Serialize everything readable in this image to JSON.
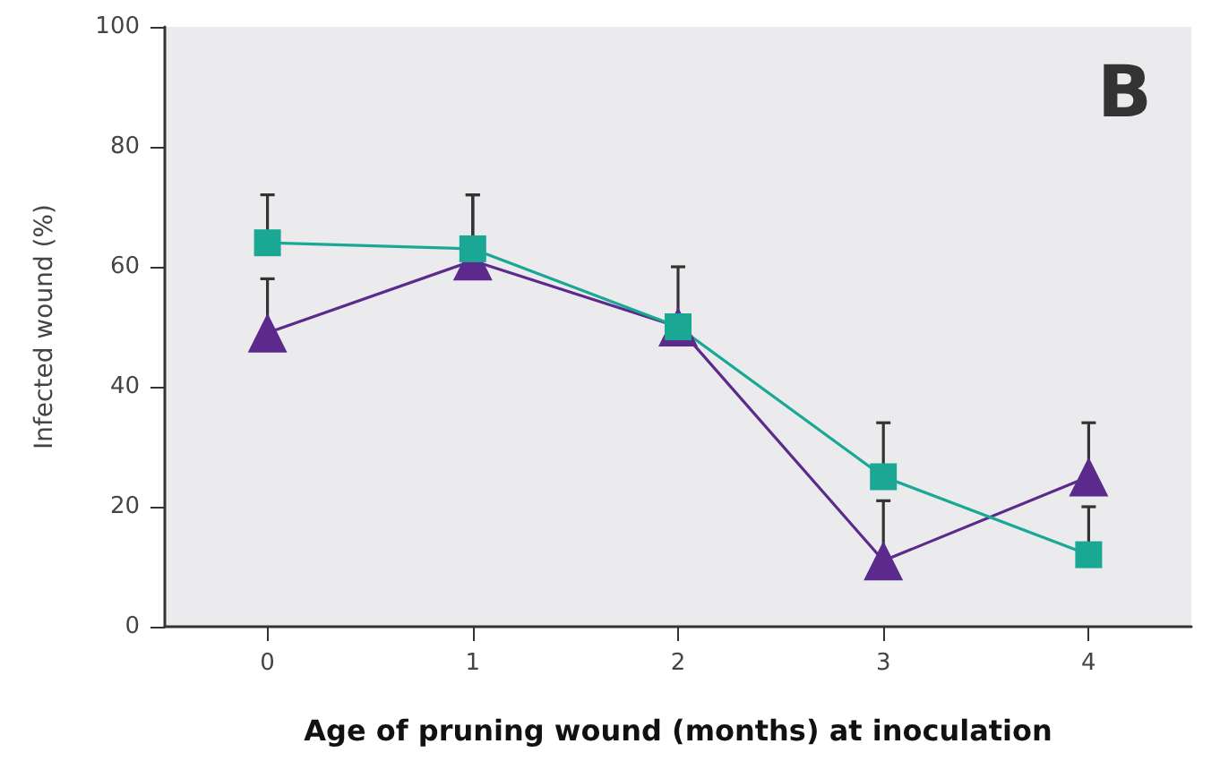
{
  "chart_data": {
    "type": "line",
    "xlabel": "Age of pruning wound (months) at inoculation",
    "ylabel": "Infected wound (%)",
    "categories": [
      "0",
      "1",
      "2",
      "3",
      "4"
    ],
    "series": [
      {
        "color": "#5b2a8c",
        "marker": "triangle",
        "values": [
          49,
          61,
          50,
          11,
          25
        ],
        "errors": [
          [
            49,
            58
          ],
          [
            61,
            72
          ],
          null,
          [
            11,
            21
          ],
          [
            25,
            34
          ]
        ]
      },
      {
        "color": "#1aa895",
        "marker": "square",
        "values": [
          64,
          63,
          50,
          25,
          12
        ],
        "errors": [
          [
            64,
            72
          ],
          [
            63,
            72
          ],
          [
            50,
            60
          ],
          [
            25,
            34
          ],
          [
            12,
            20
          ]
        ]
      }
    ],
    "ylim": [
      0,
      100
    ],
    "yticks": [
      0,
      20,
      40,
      60,
      80,
      100
    ],
    "grid": false,
    "line_style": "solid",
    "annotations": [
      "B"
    ]
  }
}
